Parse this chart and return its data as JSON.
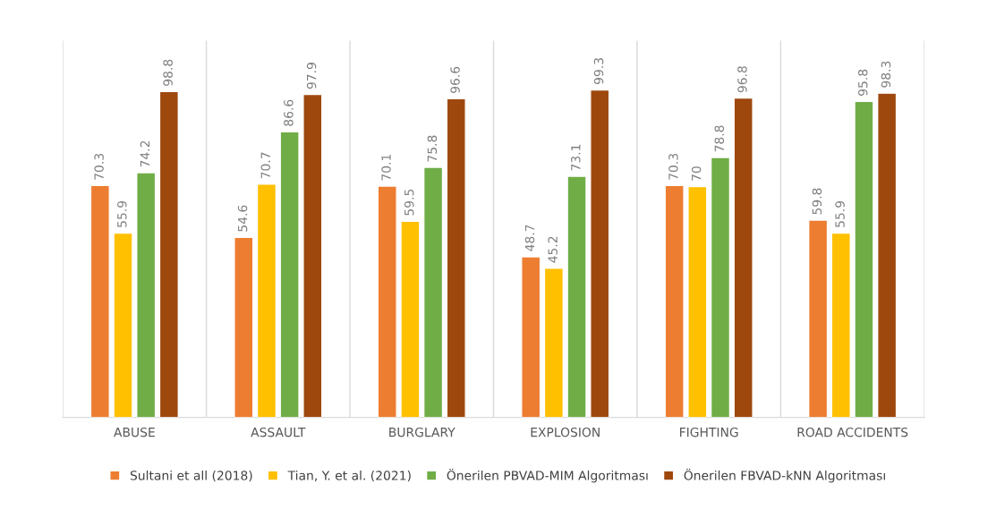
{
  "chart_data": {
    "type": "bar",
    "categories": [
      "ABUSE",
      "ASSAULT",
      "BURGLARY",
      "EXPLOSION",
      "FIGHTING",
      "ROAD ACCIDENTS"
    ],
    "series": [
      {
        "name": "Sultani et all (2018)",
        "color": "#ed7d31",
        "values": [
          70.3,
          54.6,
          70.1,
          48.7,
          70.3,
          59.8
        ]
      },
      {
        "name": "Tian, Y. et al. (2021)",
        "color": "#ffc000",
        "values": [
          55.9,
          70.7,
          59.5,
          45.2,
          70,
          55.9
        ]
      },
      {
        "name": "Önerilen PBVAD-MIM Algoritması",
        "color": "#70ad47",
        "values": [
          74.2,
          86.6,
          75.8,
          73.1,
          78.8,
          95.8
        ]
      },
      {
        "name": "Önerilen FBVAD-kNN Algoritması",
        "color": "#9e480e",
        "values": [
          98.8,
          97.9,
          96.6,
          99.3,
          96.8,
          98.3
        ]
      }
    ],
    "data_labels": true,
    "grid": "x",
    "legend": "bottom"
  }
}
